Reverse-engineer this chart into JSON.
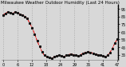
{
  "title": "Milwaukee Weather Outdoor Humidity (Last 24 Hours)",
  "y_values": [
    87,
    89,
    91,
    90,
    89,
    91,
    90,
    88,
    87,
    85,
    82,
    76,
    70,
    62,
    53,
    46,
    39,
    34,
    32,
    31,
    30,
    32,
    33,
    34,
    33,
    32,
    34,
    35,
    36,
    35,
    34,
    33,
    35,
    37,
    38,
    39,
    38,
    37,
    36,
    35,
    34,
    33,
    32,
    34,
    38,
    43,
    50,
    55
  ],
  "line_color": "#dd0000",
  "marker_color": "#111111",
  "background_color": "#d8d8d8",
  "plot_bg_color": "#d8d8d8",
  "grid_color": "#aaaaaa",
  "ylim": [
    28,
    100
  ],
  "yticks": [
    35,
    45,
    55,
    65,
    75,
    85,
    95
  ],
  "tick_fontsize": 3.5,
  "title_fontsize": 4.0,
  "title_color": "#000000",
  "border_right_color": "#000000",
  "num_vgrid": 8
}
